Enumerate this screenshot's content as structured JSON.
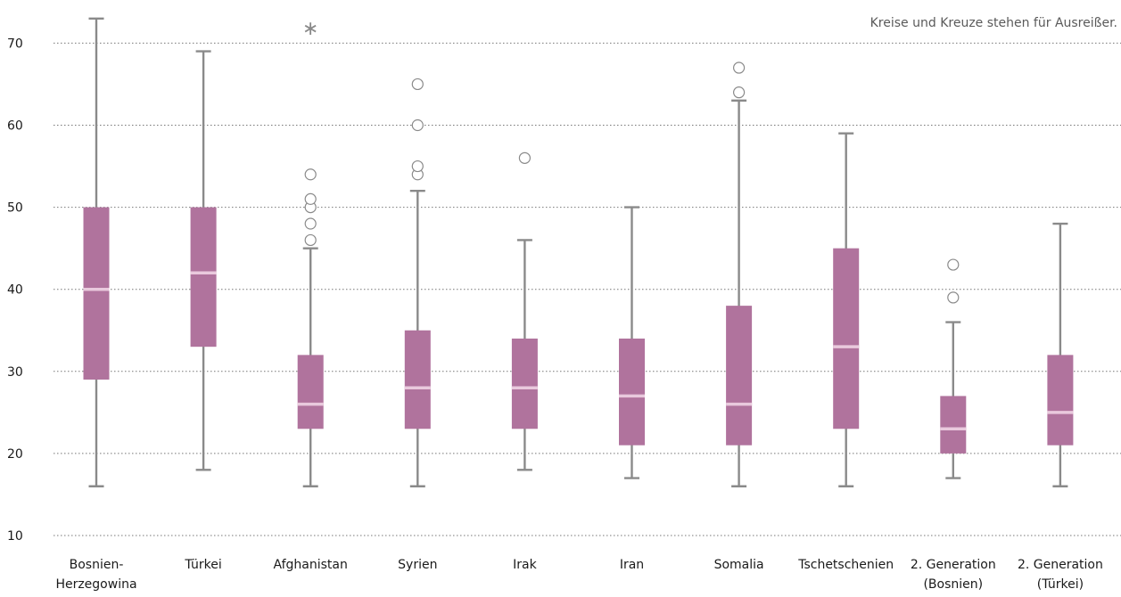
{
  "chart_data": {
    "type": "boxplot",
    "note": "Kreise und Kreuze stehen für Ausreißer.",
    "y_ticks": [
      10,
      20,
      30,
      40,
      50,
      60,
      70
    ],
    "ylim": [
      8,
      74
    ],
    "grid": "horizontal dotted",
    "colors": {
      "box": "#b0739d",
      "median": "#e9c9dd",
      "whisker": "#8a8a8a",
      "grid": "#777777"
    },
    "categories": [
      {
        "label": [
          "Bosnien-",
          "Herzegowina"
        ],
        "min": 16,
        "q1": 29,
        "median": 40,
        "q3": 50,
        "max": 73,
        "outliers": [],
        "extremes": []
      },
      {
        "label": [
          "Türkei"
        ],
        "min": 18,
        "q1": 33,
        "median": 42,
        "q3": 50,
        "max": 69,
        "outliers": [],
        "extremes": []
      },
      {
        "label": [
          "Afghanistan"
        ],
        "min": 16,
        "q1": 23,
        "median": 26,
        "q3": 32,
        "max": 45,
        "outliers": [
          46,
          48,
          50,
          51,
          54
        ],
        "extremes": [
          72
        ]
      },
      {
        "label": [
          "Syrien"
        ],
        "min": 16,
        "q1": 23,
        "median": 28,
        "q3": 35,
        "max": 52,
        "outliers": [
          54,
          55,
          60,
          65
        ],
        "extremes": []
      },
      {
        "label": [
          "Irak"
        ],
        "min": 18,
        "q1": 23,
        "median": 28,
        "q3": 34,
        "max": 46,
        "outliers": [
          56
        ],
        "extremes": []
      },
      {
        "label": [
          "Iran"
        ],
        "min": 17,
        "q1": 21,
        "median": 27,
        "q3": 34,
        "max": 50,
        "outliers": [],
        "extremes": []
      },
      {
        "label": [
          "Somalia"
        ],
        "min": 16,
        "q1": 21,
        "median": 26,
        "q3": 38,
        "max": 63,
        "outliers": [
          64,
          67
        ],
        "extremes": []
      },
      {
        "label": [
          "Tschetschenien"
        ],
        "min": 16,
        "q1": 23,
        "median": 33,
        "q3": 45,
        "max": 59,
        "outliers": [],
        "extremes": []
      },
      {
        "label": [
          "2. Generation",
          "(Bosnien)"
        ],
        "min": 17,
        "q1": 20,
        "median": 23,
        "q3": 27,
        "max": 36,
        "outliers": [
          39,
          43
        ],
        "extremes": []
      },
      {
        "label": [
          "2. Generation",
          "(Türkei)"
        ],
        "min": 16,
        "q1": 21,
        "median": 25,
        "q3": 32,
        "max": 48,
        "outliers": [],
        "extremes": []
      }
    ]
  }
}
